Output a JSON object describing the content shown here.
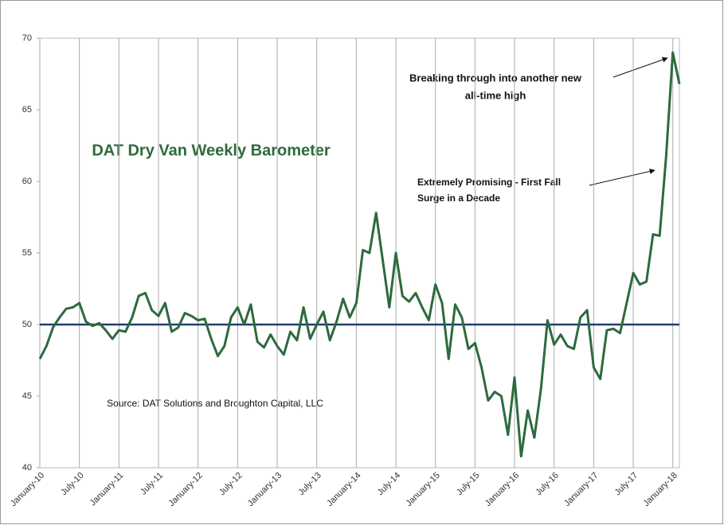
{
  "chart_data": {
    "type": "line",
    "title": "DAT Dry Van Weekly Barometer",
    "source": "Source: DAT Solutions and Broughton Capital, LLC",
    "annotations": [
      {
        "lines": [
          "Breaking through into another new",
          "all-time high"
        ]
      },
      {
        "lines": [
          "Extremely Promising - First Fall",
          "Surge in a Decade"
        ]
      }
    ],
    "x": [
      "2010-01",
      "2010-02",
      "2010-03",
      "2010-04",
      "2010-05",
      "2010-06",
      "2010-07",
      "2010-08",
      "2010-09",
      "2010-10",
      "2010-11",
      "2010-12",
      "2011-01",
      "2011-02",
      "2011-03",
      "2011-04",
      "2011-05",
      "2011-06",
      "2011-07",
      "2011-08",
      "2011-09",
      "2011-10",
      "2011-11",
      "2011-12",
      "2012-01",
      "2012-02",
      "2012-03",
      "2012-04",
      "2012-05",
      "2012-06",
      "2012-07",
      "2012-08",
      "2012-09",
      "2012-10",
      "2012-11",
      "2012-12",
      "2013-01",
      "2013-02",
      "2013-03",
      "2013-04",
      "2013-05",
      "2013-06",
      "2013-07",
      "2013-08",
      "2013-09",
      "2013-10",
      "2013-11",
      "2013-12",
      "2014-01",
      "2014-02",
      "2014-03",
      "2014-04",
      "2014-05",
      "2014-06",
      "2014-07",
      "2014-08",
      "2014-09",
      "2014-10",
      "2014-11",
      "2014-12",
      "2015-01",
      "2015-02",
      "2015-03",
      "2015-04",
      "2015-05",
      "2015-06",
      "2015-07",
      "2015-08",
      "2015-09",
      "2015-10",
      "2015-11",
      "2015-12",
      "2016-01",
      "2016-02",
      "2016-03",
      "2016-04",
      "2016-05",
      "2016-06",
      "2016-07",
      "2016-08",
      "2016-09",
      "2016-10",
      "2016-11",
      "2016-12",
      "2017-01",
      "2017-02",
      "2017-03",
      "2017-04",
      "2017-05",
      "2017-06",
      "2017-07",
      "2017-08",
      "2017-09",
      "2017-10",
      "2017-11",
      "2017-12",
      "2018-01",
      "2018-02"
    ],
    "series": [
      {
        "color": "#2d6a3e",
        "values": [
          47.6,
          48.5,
          49.8,
          50.5,
          51.1,
          51.2,
          51.5,
          50.2,
          49.9,
          50.1,
          49.6,
          49.0,
          49.6,
          49.5,
          50.5,
          52.0,
          52.2,
          51.0,
          50.6,
          51.5,
          49.5,
          49.8,
          50.8,
          50.6,
          50.3,
          50.4,
          49.0,
          47.8,
          48.5,
          50.5,
          51.2,
          50.0,
          51.4,
          48.8,
          48.4,
          49.3,
          48.5,
          47.9,
          49.5,
          48.9,
          51.2,
          49.0,
          50.0,
          50.9,
          48.9,
          50.2,
          51.8,
          50.5,
          51.5,
          55.2,
          55.0,
          57.8,
          54.5,
          51.2,
          55.0,
          52.0,
          51.6,
          52.2,
          51.2,
          50.3,
          52.8,
          51.5,
          47.6,
          51.4,
          50.5,
          48.3,
          48.7,
          47.0,
          44.7,
          45.3,
          45.0,
          42.3,
          46.3,
          40.8,
          44.0,
          42.1,
          45.5,
          50.3,
          48.6,
          49.3,
          48.5,
          48.3,
          50.5,
          51.0,
          47.0,
          46.2,
          49.6,
          49.7,
          49.4,
          51.5,
          53.6,
          52.8,
          53.0,
          56.3,
          56.2,
          61.8,
          69.0,
          66.8
        ]
      }
    ],
    "reference_line": {
      "value": 50,
      "color": "#1f3f6e"
    },
    "xlim": [
      "2010-01",
      "2018-02"
    ],
    "xticks": [
      {
        "value": "2010-01",
        "label": "January-10"
      },
      {
        "value": "2010-07",
        "label": "July-10"
      },
      {
        "value": "2011-01",
        "label": "January-11"
      },
      {
        "value": "2011-07",
        "label": "July-11"
      },
      {
        "value": "2012-01",
        "label": "January-12"
      },
      {
        "value": "2012-07",
        "label": "July-12"
      },
      {
        "value": "2013-01",
        "label": "January-13"
      },
      {
        "value": "2013-07",
        "label": "July-13"
      },
      {
        "value": "2014-01",
        "label": "January-14"
      },
      {
        "value": "2014-07",
        "label": "July-14"
      },
      {
        "value": "2015-01",
        "label": "January-15"
      },
      {
        "value": "2015-07",
        "label": "July-15"
      },
      {
        "value": "2016-01",
        "label": "January-16"
      },
      {
        "value": "2016-07",
        "label": "July-16"
      },
      {
        "value": "2017-01",
        "label": "January-17"
      },
      {
        "value": "2017-07",
        "label": "July-17"
      },
      {
        "value": "2018-01",
        "label": "January-18"
      }
    ],
    "ylim": [
      40,
      70
    ],
    "yticks": [
      40,
      45,
      50,
      55,
      60,
      65,
      70
    ],
    "grid": true
  }
}
